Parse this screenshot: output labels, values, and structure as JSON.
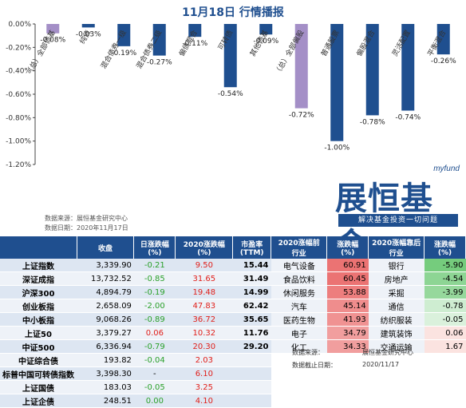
{
  "chart_data": {
    "type": "bar",
    "title": "11月18日  行情播报",
    "categories": [
      "（总）全部债基",
      "纯债",
      "混合债券一级",
      "混合债券二级",
      "偏债混合",
      "可转债",
      "其他债基",
      "（总）全部偏股",
      "普通股票",
      "偏股混合",
      "灵活配置",
      "平衡混合"
    ],
    "values": [
      -0.08,
      -0.03,
      -0.19,
      -0.27,
      -0.11,
      -0.54,
      -0.09,
      -0.72,
      -1.0,
      -0.78,
      -0.74,
      -0.26
    ],
    "value_labels": [
      "-0.08%",
      "-0.03%",
      "-0.19%",
      "-0.27%",
      "-0.11%",
      "-0.54%",
      "-0.09%",
      "-0.72%",
      "-1.00%",
      "-0.78%",
      "-0.74%",
      "-0.26%"
    ],
    "highlight": [
      0,
      7
    ],
    "ylim": [
      -1.2,
      0
    ],
    "yticks": [
      "0.00%",
      "-0.20%",
      "-0.40%",
      "-0.60%",
      "-0.80%",
      "-1.00%",
      "-1.20%"
    ],
    "colors": {
      "normal": "#1f4f8f",
      "highlight": "#a48fc7"
    },
    "xlabel": "",
    "ylabel": ""
  },
  "source": {
    "line1": "数据来源：展恒基金研究中心",
    "line2": "数据日期：2020年11月17日"
  },
  "logo": {
    "top": "myfund",
    "big": "展恒基金",
    "slogan": "解决基金投资一切问题"
  },
  "left_table": {
    "headers": [
      "",
      "收盘",
      "日涨跌幅\n(%)",
      "2020涨跌幅\n(%)",
      "市盈率\n(TTM)"
    ],
    "rows": [
      {
        "name": "上证指数",
        "close": "3,339.90",
        "day": "-0.21",
        "ytd": "9.50",
        "pe": "15.44"
      },
      {
        "name": "深证成指",
        "close": "13,732.52",
        "day": "-0.85",
        "ytd": "31.65",
        "pe": "31.49"
      },
      {
        "name": "沪深300",
        "close": "4,894.79",
        "day": "-0.19",
        "ytd": "19.48",
        "pe": "14.99"
      },
      {
        "name": "创业板指",
        "close": "2,658.09",
        "day": "-2.00",
        "ytd": "47.83",
        "pe": "62.42"
      },
      {
        "name": "中小板指",
        "close": "9,068.26",
        "day": "-0.89",
        "ytd": "36.72",
        "pe": "35.65"
      },
      {
        "name": "上证50",
        "close": "3,379.27",
        "day": "0.06",
        "ytd": "10.32",
        "pe": "11.76"
      },
      {
        "name": "中证500",
        "close": "6,336.94",
        "day": "-0.79",
        "ytd": "20.30",
        "pe": "29.20"
      },
      {
        "name": "中证综合债",
        "close": "193.82",
        "day": "-0.04",
        "ytd": "2.03",
        "pe": ""
      },
      {
        "name": "标普中国可转债指数",
        "close": "3,398.30",
        "day": "-",
        "ytd": "6.10",
        "pe": ""
      },
      {
        "name": "上证国债",
        "close": "183.03",
        "day": "-0.05",
        "ytd": "3.25",
        "pe": ""
      },
      {
        "name": "上证企债",
        "close": "248.51",
        "day": "0.00",
        "ytd": "4.10",
        "pe": ""
      }
    ]
  },
  "right_table": {
    "headers": [
      "2020涨幅前\n行业",
      "涨跌幅 (%)",
      "2020涨幅靠后\n行业",
      "涨跌幅 (%)"
    ],
    "rows": [
      {
        "top": "电气设备",
        "top_v": "60.91",
        "bot": "银行",
        "bot_v": "-5.90"
      },
      {
        "top": "食品饮料",
        "top_v": "60.45",
        "bot": "房地产",
        "bot_v": "-4.54"
      },
      {
        "top": "休闲服务",
        "top_v": "53.88",
        "bot": "采掘",
        "bot_v": "-3.99"
      },
      {
        "top": "汽车",
        "top_v": "45.14",
        "bot": "通信",
        "bot_v": "-0.78"
      },
      {
        "top": "医药生物",
        "top_v": "41.93",
        "bot": "纺织服装",
        "bot_v": "-0.05"
      },
      {
        "top": "电子",
        "top_v": "34.79",
        "bot": "建筑装饰",
        "bot_v": "0.06"
      },
      {
        "top": "化工",
        "top_v": "34.33",
        "bot": "交通运输",
        "bot_v": "1.67"
      }
    ],
    "footer": {
      "src_label": "数据来源：",
      "src": "展恒基金研究中心",
      "date_label": "数据截止日期：",
      "date": "2020/11/17"
    }
  }
}
